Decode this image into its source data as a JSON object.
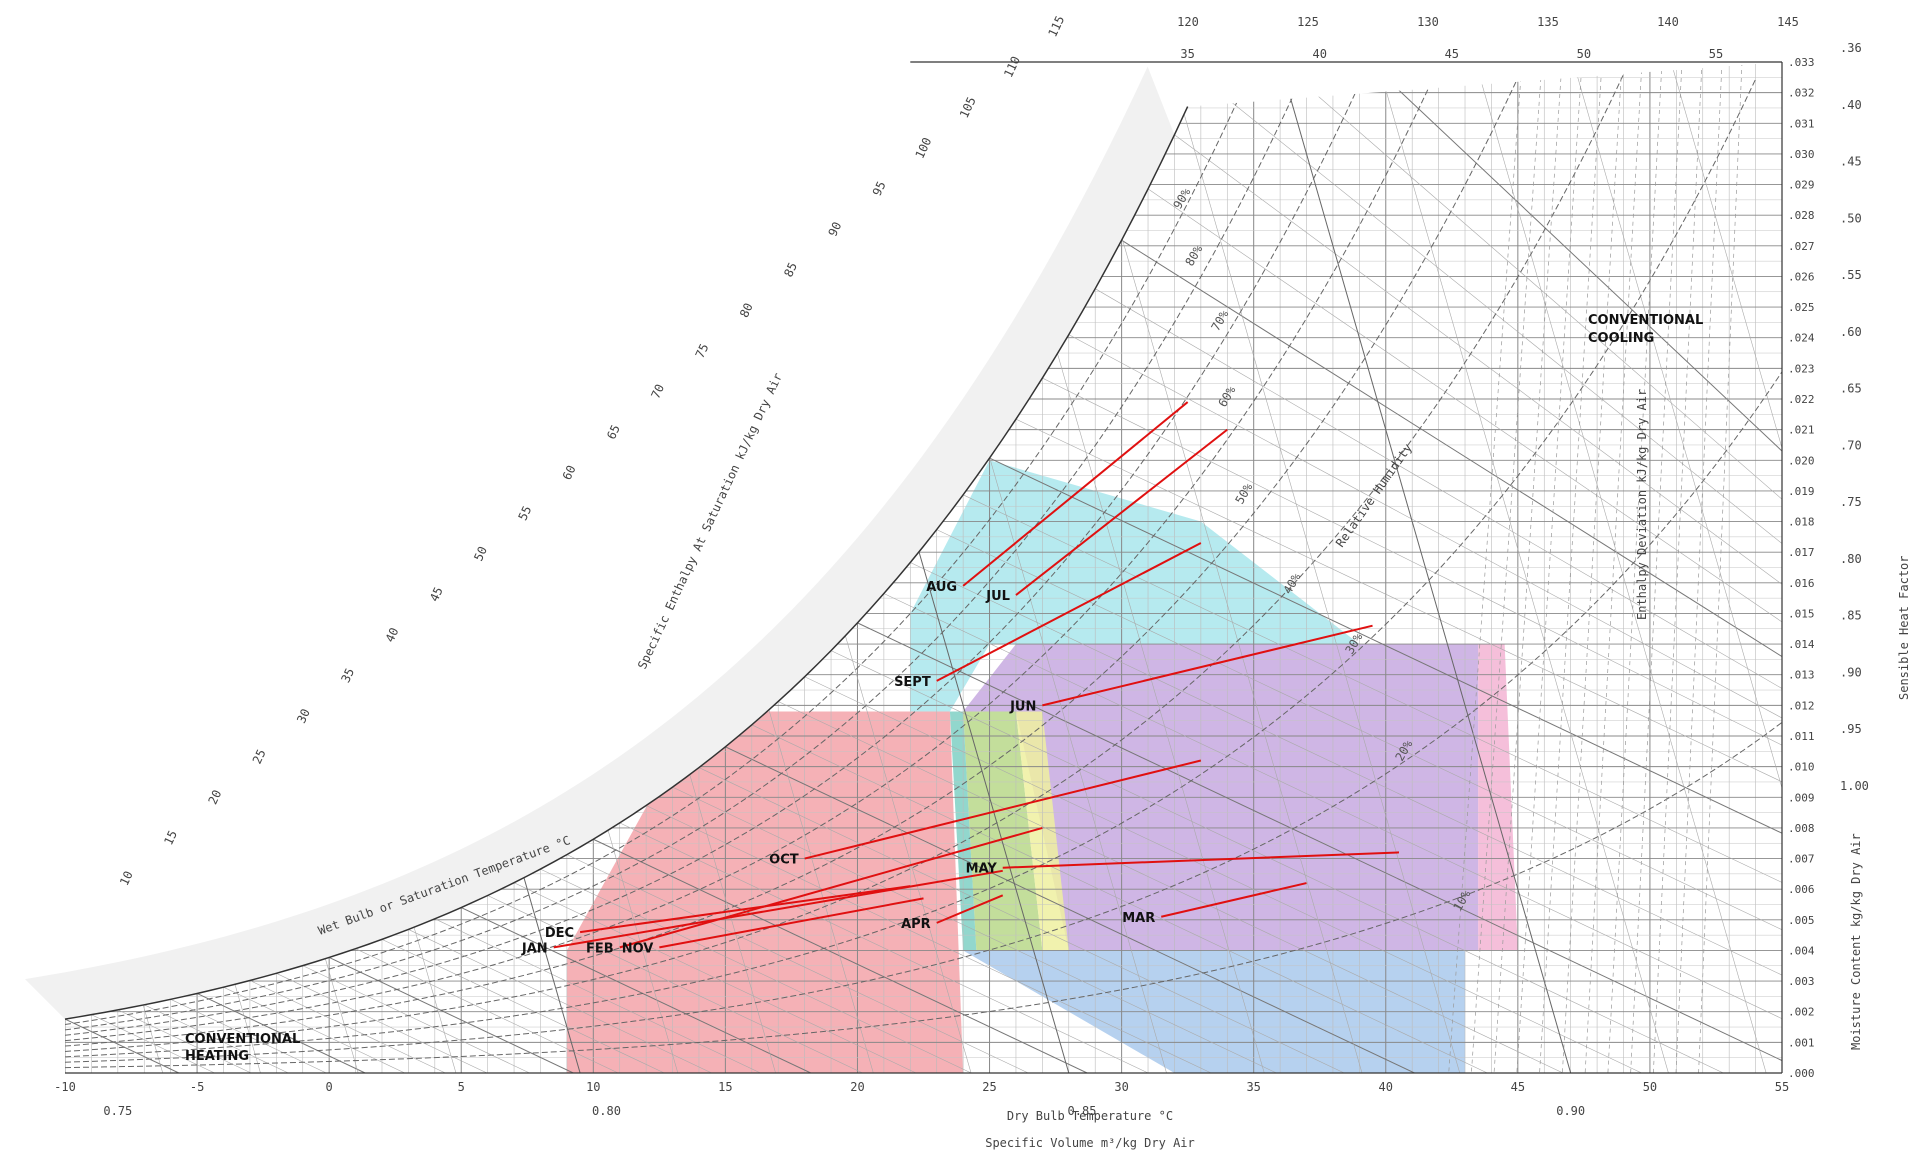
{
  "chart_data": {
    "type": "psychrometric",
    "axes": {
      "x_label": "Dry Bulb Temperature °C",
      "x_range": [
        -10,
        55
      ],
      "x_ticks": [
        "-10",
        "-5",
        "0",
        "5",
        "10",
        "15",
        "20",
        "25",
        "30",
        "35",
        "40",
        "45",
        "50",
        "55"
      ],
      "y_label": "Moisture Content kg/kg Dry Air",
      "y_range": [
        0.0,
        0.033
      ],
      "y_ticks": [
        ".000",
        ".001",
        ".002",
        ".003",
        ".004",
        ".005",
        ".006",
        ".007",
        ".008",
        ".009",
        ".010",
        ".011",
        ".012",
        ".013",
        ".014",
        ".015",
        ".016",
        ".017",
        ".018",
        ".019",
        ".020",
        ".021",
        ".022",
        ".023",
        ".024",
        ".025",
        ".026",
        ".027",
        ".028",
        ".029",
        ".030",
        ".031",
        ".032",
        ".033"
      ],
      "specific_volume_label": "Specific Volume m³/kg Dry Air",
      "specific_volume_ticks": [
        "0.75",
        "0.80",
        "0.85",
        "0.90"
      ],
      "wet_bulb_label": "Wet Bulb or Saturation Temperature °C",
      "enthalpy_label": "Specific Enthalpy At Saturation kJ/kg Dry Air",
      "enthalpy_ticks": [
        "10",
        "15",
        "20",
        "25",
        "30",
        "35",
        "40",
        "45",
        "50",
        "55",
        "60",
        "65",
        "70",
        "75",
        "80",
        "85",
        "90",
        "95",
        "100",
        "105",
        "110",
        "115",
        "120",
        "125",
        "130",
        "135",
        "140",
        "145"
      ],
      "top_temp_ticks": [
        "35",
        "40",
        "45",
        "50",
        "55"
      ],
      "shf_label": "Sensible Heat Factor",
      "shf_ticks": [
        ".36",
        ".40",
        ".45",
        ".50",
        ".55",
        ".60",
        ".65",
        ".70",
        ".75",
        ".80",
        ".85",
        ".90",
        ".95",
        "1.00"
      ],
      "rh_label": "Relative Humidity",
      "rh_ticks": [
        "10%",
        "20%",
        "30%",
        "40%",
        "50%",
        "60%",
        "70%",
        "80%",
        "90%"
      ],
      "enthalpy_deviation_label": "Enthalpy Deviation kJ/kg Dry Air"
    },
    "regions": [
      {
        "name": "conventional_heating_label",
        "label": "CONVENTIONAL HEATING",
        "color": "#111111"
      },
      {
        "name": "conventional_cooling_label",
        "label": "CONVENTIONAL COOLING",
        "color": "#111111"
      },
      {
        "name": "red_zone",
        "color": "#f3a3a9",
        "polygon": [
          [
            9,
            0
          ],
          [
            9,
            4.0
          ],
          [
            14,
            11.8
          ],
          [
            23.5,
            11.8
          ],
          [
            24,
            0
          ]
        ]
      },
      {
        "name": "cyan_zone",
        "color": "#a9e6ec",
        "polygon": [
          [
            22,
            11.8
          ],
          [
            22,
            15
          ],
          [
            25,
            20
          ],
          [
            33,
            18
          ],
          [
            39,
            14
          ],
          [
            25,
            14
          ],
          [
            23.5,
            11.8
          ]
        ]
      },
      {
        "name": "purple_zone",
        "color": "#c7a9e0",
        "polygon": [
          [
            24,
            11.8
          ],
          [
            26,
            14
          ],
          [
            43.5,
            14
          ],
          [
            43.5,
            4
          ],
          [
            28,
            4
          ],
          [
            26,
            11.8
          ]
        ]
      },
      {
        "name": "pink_zone",
        "color": "#f3b4d4",
        "polygon": [
          [
            43.5,
            14
          ],
          [
            44.5,
            14
          ],
          [
            45,
            4
          ],
          [
            43.5,
            4
          ]
        ]
      },
      {
        "name": "green_zone",
        "color": "#b8d88a",
        "polygon": [
          [
            24,
            11.8
          ],
          [
            26,
            11.8
          ],
          [
            27,
            4
          ],
          [
            24.5,
            4
          ]
        ]
      },
      {
        "name": "yellow_zone",
        "color": "#eef0a0",
        "polygon": [
          [
            26,
            11.8
          ],
          [
            27,
            11.8
          ],
          [
            28,
            4
          ],
          [
            27,
            4
          ]
        ]
      },
      {
        "name": "teal_zone",
        "color": "#7fd0c4",
        "polygon": [
          [
            23.5,
            11.8
          ],
          [
            24,
            11.8
          ],
          [
            24.5,
            4
          ],
          [
            24,
            4
          ]
        ]
      },
      {
        "name": "blue_zone",
        "color": "#a9c9ec",
        "polygon": [
          [
            24,
            4
          ],
          [
            43,
            4
          ],
          [
            43,
            0
          ],
          [
            32,
            0
          ]
        ]
      }
    ],
    "months": [
      {
        "label": "JAN",
        "x": 8.5,
        "y": 4.1,
        "x2": 25.5,
        "y2": 6.6
      },
      {
        "label": "FEB",
        "x": 11,
        "y": 4.1,
        "x2": 27,
        "y2": 8.0
      },
      {
        "label": "MAR",
        "x": 31.5,
        "y": 5.1,
        "x2": 37,
        "y2": 6.2
      },
      {
        "label": "APR",
        "x": 23,
        "y": 4.9,
        "x2": 25.5,
        "y2": 5.8
      },
      {
        "label": "MAY",
        "x": 25.5,
        "y": 6.7,
        "x2": 40.5,
        "y2": 7.2
      },
      {
        "label": "JUN",
        "x": 27,
        "y": 12.0,
        "x2": 39.5,
        "y2": 14.6
      },
      {
        "label": "JUL",
        "x": 26,
        "y": 15.6,
        "x2": 34,
        "y2": 21.0
      },
      {
        "label": "AUG",
        "x": 24,
        "y": 15.9,
        "x2": 32.5,
        "y2": 21.9
      },
      {
        "label": "SEPT",
        "x": 23,
        "y": 12.8,
        "x2": 33,
        "y2": 17.3
      },
      {
        "label": "OCT",
        "x": 18,
        "y": 7.0,
        "x2": 33,
        "y2": 10.2
      },
      {
        "label": "NOV",
        "x": 12.5,
        "y": 4.1,
        "x2": 22.5,
        "y2": 5.7
      },
      {
        "label": "DEC",
        "x": 9.5,
        "y": 4.6,
        "x2": 22,
        "y2": 6.1
      }
    ]
  },
  "labels": {
    "conventional_heating_line1": "CONVENTIONAL",
    "conventional_heating_line2": "HEATING",
    "conventional_cooling_line1": "CONVENTIONAL",
    "conventional_cooling_line2": "COOLING"
  }
}
